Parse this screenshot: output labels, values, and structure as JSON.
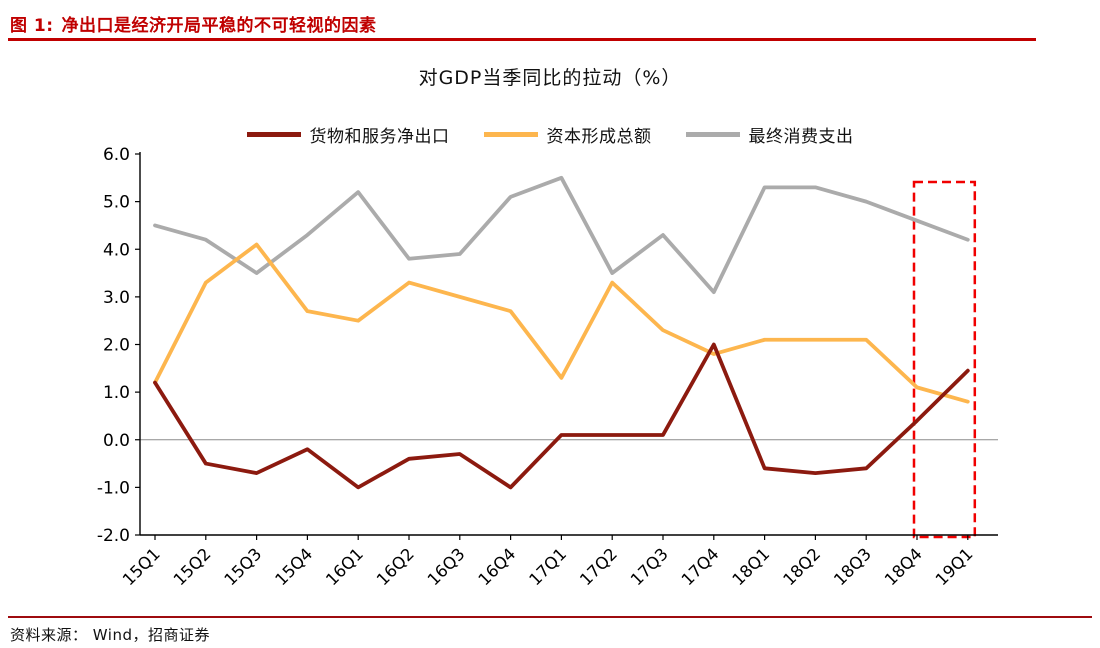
{
  "header": {
    "figure_label": "图 1:",
    "title": "净出口是经济开局平稳的不可轻视的因素"
  },
  "footer": {
    "source": "资料来源： Wind，招商证券"
  },
  "colors": {
    "caption_red": "#C00000",
    "source_rule_red": "#9E0B0F",
    "net_exports_line": "#8C1A0F",
    "capital_formation_line": "#FDB64E",
    "consumption_line": "#ABABAB",
    "highlight_box": "#F00000",
    "zero_line": "#8C8C8C",
    "axis": "#000000"
  },
  "chart_data": {
    "type": "line",
    "title": "对GDP当季同比的拉动（%）",
    "categories": [
      "15Q1",
      "15Q2",
      "15Q3",
      "15Q4",
      "16Q1",
      "16Q2",
      "16Q3",
      "16Q4",
      "17Q1",
      "17Q2",
      "17Q3",
      "17Q4",
      "18Q1",
      "18Q2",
      "18Q3",
      "18Q4",
      "19Q1"
    ],
    "series": [
      {
        "name": "货物和服务净出口",
        "color": "#8C1A0F",
        "values": [
          1.2,
          -0.5,
          -0.7,
          -0.2,
          -1.0,
          -0.4,
          -0.3,
          -1.0,
          0.1,
          0.1,
          0.1,
          2.0,
          -0.6,
          -0.7,
          -0.6,
          0.4,
          1.45
        ]
      },
      {
        "name": "资本形成总额",
        "color": "#FDB64E",
        "values": [
          1.2,
          3.3,
          4.1,
          2.7,
          2.5,
          3.3,
          3.0,
          2.7,
          1.3,
          3.3,
          2.3,
          1.8,
          2.1,
          2.1,
          2.1,
          1.1,
          0.8
        ]
      },
      {
        "name": "最终消费支出",
        "color": "#ABABAB",
        "values": [
          4.5,
          4.2,
          3.5,
          4.3,
          5.2,
          3.8,
          3.9,
          5.1,
          5.5,
          3.5,
          4.3,
          3.1,
          5.3,
          5.3,
          5.0,
          4.6,
          4.2
        ]
      }
    ],
    "ylim": [
      -2.0,
      6.0
    ],
    "ytick_step": 1.0,
    "ytick_labels": [
      "6.0",
      "5.0",
      "4.0",
      "3.0",
      "2.0",
      "1.0",
      "0.0",
      "-1.0",
      "-2.0"
    ],
    "xlabel": "",
    "ylabel": "",
    "grid": false,
    "legend_position": "top",
    "zero_line": true,
    "highlight": {
      "from_category": "18Q4",
      "to_category": "19Q1",
      "style": "dashed-red-box"
    }
  }
}
